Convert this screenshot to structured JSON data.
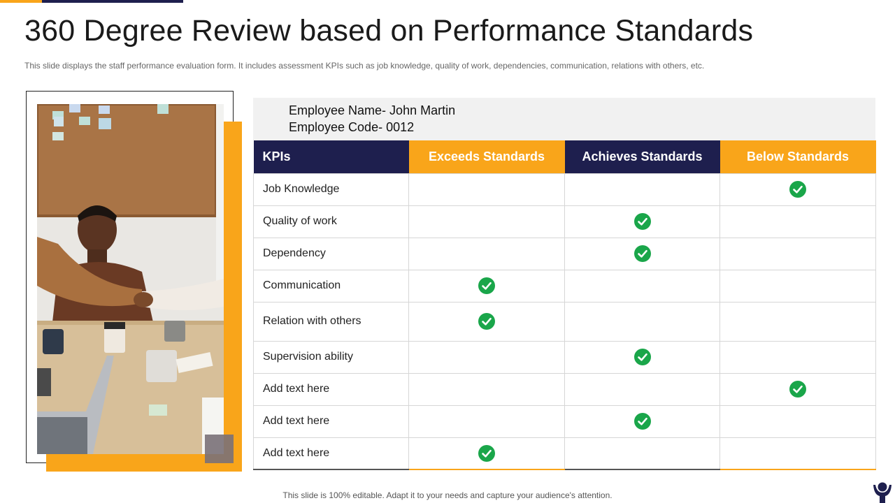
{
  "slide": {
    "title": "360 Degree Review based on Performance Standards",
    "subtitle": "This slide displays the staff performance evaluation form. It includes assessment KPIs such as job knowledge, quality of work, dependencies, communication, relations with others, etc.",
    "footer": "This slide is 100% editable. Adapt it to your needs and capture your audience's attention."
  },
  "employee": {
    "name_line": "Employee Name- John Martin",
    "code_line": "Employee Code- 0012"
  },
  "colors": {
    "navy": "#1e1f4e",
    "orange": "#f9a51a",
    "check_green": "#1aa64a"
  },
  "table": {
    "headers": [
      "KPIs",
      "Exceeds Standards",
      "Achieves Standards",
      "Below Standards"
    ],
    "rows": [
      {
        "kpi": "Job Knowledge",
        "rating": "Below Standards"
      },
      {
        "kpi": "Quality  of work",
        "rating": "Achieves Standards"
      },
      {
        "kpi": "Dependency",
        "rating": "Achieves Standards"
      },
      {
        "kpi": "Communication",
        "rating": "Exceeds Standards"
      },
      {
        "kpi": "Relation with others",
        "rating": "Exceeds Standards"
      },
      {
        "kpi": "Supervision ability",
        "rating": "Achieves Standards"
      },
      {
        "kpi": "Add text here",
        "rating": "Below Standards"
      },
      {
        "kpi": "Add text here",
        "rating": "Achieves Standards"
      },
      {
        "kpi": "Add text here",
        "rating": "Exceeds Standards"
      }
    ]
  },
  "icons": {
    "rating_mark": "check-circle-icon",
    "brand": "person-logo-icon"
  }
}
